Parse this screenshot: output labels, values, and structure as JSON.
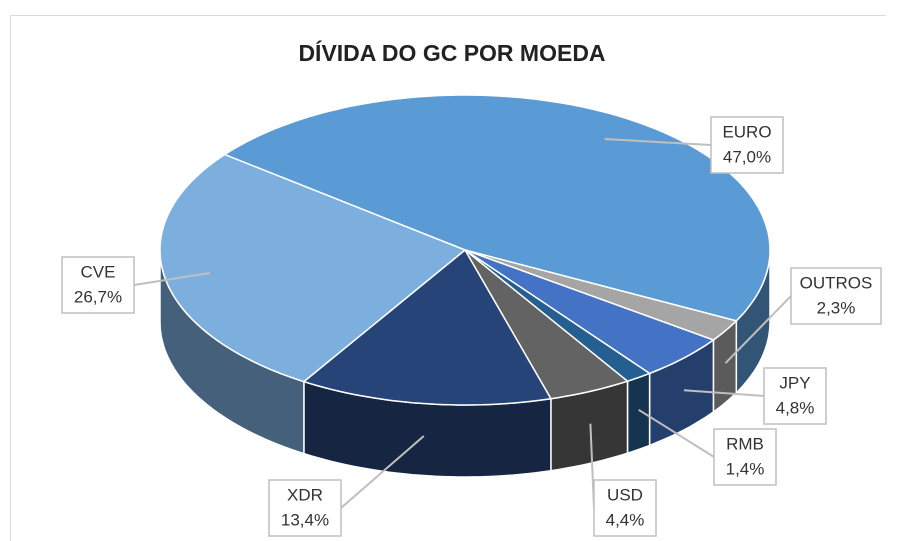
{
  "chart_data": {
    "type": "pie3d",
    "title": "DÍVIDA DO GC POR MOEDA",
    "categories": [
      "EURO",
      "OUTROS",
      "JPY",
      "RMB",
      "USD",
      "XDR",
      "CVE"
    ],
    "values": [
      47.0,
      2.3,
      4.8,
      1.4,
      4.4,
      13.4,
      26.7
    ],
    "value_labels": [
      "47,0%",
      "2,3%",
      "4,8%",
      "1,4%",
      "4,4%",
      "13,4%",
      "26,7%"
    ],
    "colors": [
      "#5b9bd5",
      "#a5a5a5",
      "#4472c4",
      "#255e91",
      "#636363",
      "#264478",
      "#7cafdd"
    ]
  }
}
